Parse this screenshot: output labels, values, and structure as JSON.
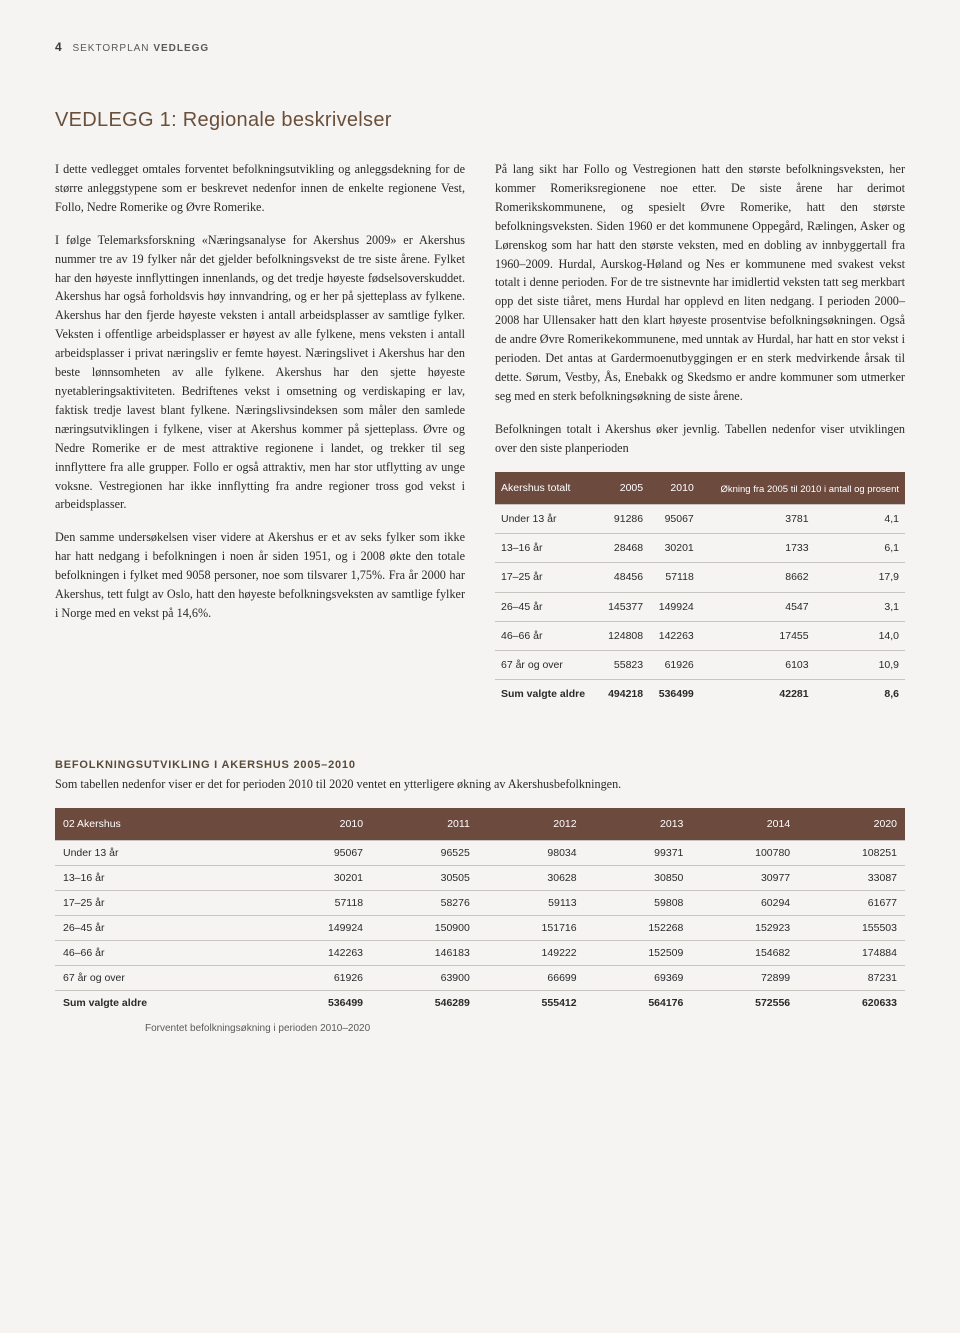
{
  "header": {
    "pagenum": "4",
    "section": "SEKTORPLAN",
    "subsection": "VEDLEGG"
  },
  "title": "VEDLEGG 1: Regionale beskrivelser",
  "body": {
    "left": {
      "p1": "I dette vedlegget omtales forventet befolkningsutvikling og anleggsdekning for de større anleggstypene som er beskrevet nedenfor innen de enkelte regionene Vest, Follo, Nedre Romerike og Øvre Romerike.",
      "p2": "I følge Telemarksforskning «Næringsanalyse for Akershus 2009» er Akershus nummer tre av 19 fylker når det gjelder befolkningsvekst de tre siste årene. Fylket har den høyeste innflyttingen innenlands, og det tredje høyeste fødselsoverskuddet. Akershus har også forholdsvis høy innvandring, og er her på sjetteplass av fylkene. Akershus har den fjerde høyeste veksten i antall arbeidsplasser av samtlige fylker. Veksten i offentlige arbeidsplasser er høyest av alle fylkene, mens veksten i antall arbeidsplasser i privat næringsliv er femte høyest. Næringslivet i Akershus har den beste lønnsomheten av alle fylkene. Akershus har den sjette høyeste nyetableringsaktiviteten. Bedriftenes vekst i omsetning og verdiskaping er lav, faktisk tredje lavest blant fylkene. Næringslivsindeksen som måler den samlede næringsutviklingen i fylkene, viser at Akershus kommer på sjetteplass. Øvre og Nedre Romerike er de mest attraktive regionene i landet, og trekker til seg innflyttere fra alle grupper. Follo er også attraktiv, men har stor utflytting av unge voksne. Vestregionen har ikke innflytting fra andre regioner tross god vekst i arbeidsplasser.",
      "p3": "Den samme undersøkelsen viser videre at Akershus er et av seks fylker som ikke har hatt nedgang i befolkningen i noen år siden 1951, og i 2008 økte den totale befolkningen i fylket med 9058 personer, noe som tilsvarer 1,75%. Fra år 2000 har Akershus, tett fulgt av Oslo, hatt den høyeste befolkningsveksten av samtlige fylker i Norge med en vekst på 14,6%."
    },
    "right": {
      "p1": "På lang sikt har Follo og Vestregionen hatt den største befolkningsveksten, her kommer Romeriksregionene noe etter. De siste årene har derimot Romerikskommunene, og spesielt Øvre Romerike, hatt den største befolkningsveksten. Siden 1960 er det kommunene Oppegård, Rælingen, Asker og Lørenskog som har hatt den største veksten, med en dobling av innbyggertall fra 1960–2009. Hurdal, Aurskog-Høland og Nes er kommunene med svakest vekst totalt i denne perioden. For de tre sistnevnte har imidlertid veksten tatt seg merkbart opp det siste tiåret, mens Hurdal har opplevd en liten nedgang. I perioden 2000–2008 har Ullensaker hatt den klart høyeste prosentvise befolkningsøkningen. Også de andre Øvre Romerikekommunene, med unntak av Hurdal, har hatt en stor vekst i perioden. Det antas at Gardermoenutbyggingen er en sterk medvirkende årsak til dette. Sørum, Vestby, Ås, Enebakk og Skedsmo er andre kommuner som utmerker seg med en sterk befolkningsøkning de siste årene.",
      "p2": "Befolkningen totalt i Akershus øker jevnlig. Tabellen nedenfor viser utviklingen over den siste planperioden"
    }
  },
  "table1": {
    "header_bg": "#6d4a3e",
    "headers": [
      "Akershus totalt",
      "2005",
      "2010",
      "Økning fra 2005 til 2010 i antall og prosent"
    ],
    "rows": [
      [
        "Under 13 år",
        "91286",
        "95067",
        "3781",
        "4,1"
      ],
      [
        "13–16 år",
        "28468",
        "30201",
        "1733",
        "6,1"
      ],
      [
        "17–25 år",
        "48456",
        "57118",
        "8662",
        "17,9"
      ],
      [
        "26–45 år",
        "145377",
        "149924",
        "4547",
        "3,1"
      ],
      [
        "46–66 år",
        "124808",
        "142263",
        "17455",
        "14,0"
      ],
      [
        "67 år og over",
        "55823",
        "61926",
        "6103",
        "10,9"
      ],
      [
        "Sum valgte aldre",
        "494218",
        "536499",
        "42281",
        "8,6"
      ]
    ]
  },
  "section2": {
    "heading": "BEFOLKNINGSUTVIKLING I AKERSHUS 2005–2010",
    "intro": "Som tabellen nedenfor viser er det for perioden 2010 til 2020 ventet en ytterligere økning av Akershusbefolkningen."
  },
  "table2": {
    "header_bg": "#6d4a3e",
    "headers": [
      "02 Akershus",
      "2010",
      "2011",
      "2012",
      "2013",
      "2014",
      "2020"
    ],
    "rows": [
      [
        "Under 13 år",
        "95067",
        "96525",
        "98034",
        "99371",
        "100780",
        "108251"
      ],
      [
        "13–16 år",
        "30201",
        "30505",
        "30628",
        "30850",
        "30977",
        "33087"
      ],
      [
        "17–25 år",
        "57118",
        "58276",
        "59113",
        "59808",
        "60294",
        "61677"
      ],
      [
        "26–45 år",
        "149924",
        "150900",
        "151716",
        "152268",
        "152923",
        "155503"
      ],
      [
        "46–66 år",
        "142263",
        "146183",
        "149222",
        "152509",
        "154682",
        "174884"
      ],
      [
        "67 år og over",
        "61926",
        "63900",
        "66699",
        "69369",
        "72899",
        "87231"
      ],
      [
        "Sum valgte aldre",
        "536499",
        "546289",
        "555412",
        "564176",
        "572556",
        "620633"
      ]
    ],
    "caption": "Forventet befolkningsøkning i perioden 2010–2020"
  }
}
